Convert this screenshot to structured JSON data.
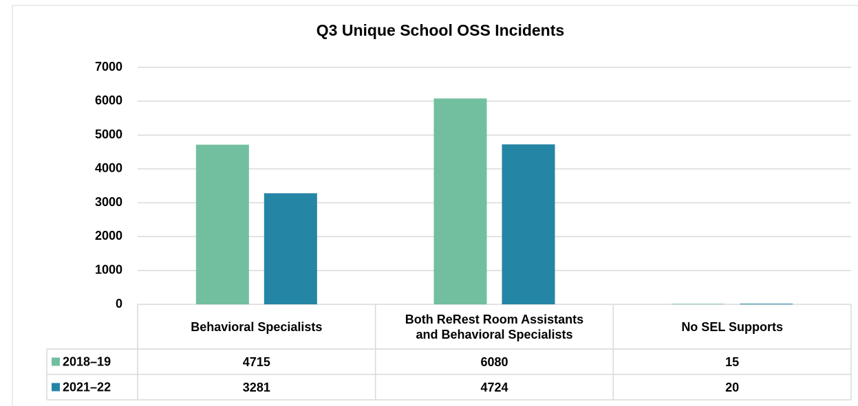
{
  "chart_data": {
    "type": "bar",
    "title": "Q3 Unique School OSS Incidents",
    "categories": [
      "Behavioral Specialists",
      "Both ReRest Room Assistants and Behavioral Specialists",
      "No SEL Supports"
    ],
    "series": [
      {
        "name": "2018–19",
        "color": "#72bfa0",
        "values": [
          4715,
          6080,
          15
        ]
      },
      {
        "name": "2021–22",
        "color": "#2585a5",
        "values": [
          3281,
          4724,
          20
        ]
      }
    ],
    "ylim": [
      0,
      7000
    ],
    "yticks": [
      0,
      1000,
      2000,
      3000,
      4000,
      5000,
      6000,
      7000
    ],
    "grid": true,
    "data_table": true
  }
}
